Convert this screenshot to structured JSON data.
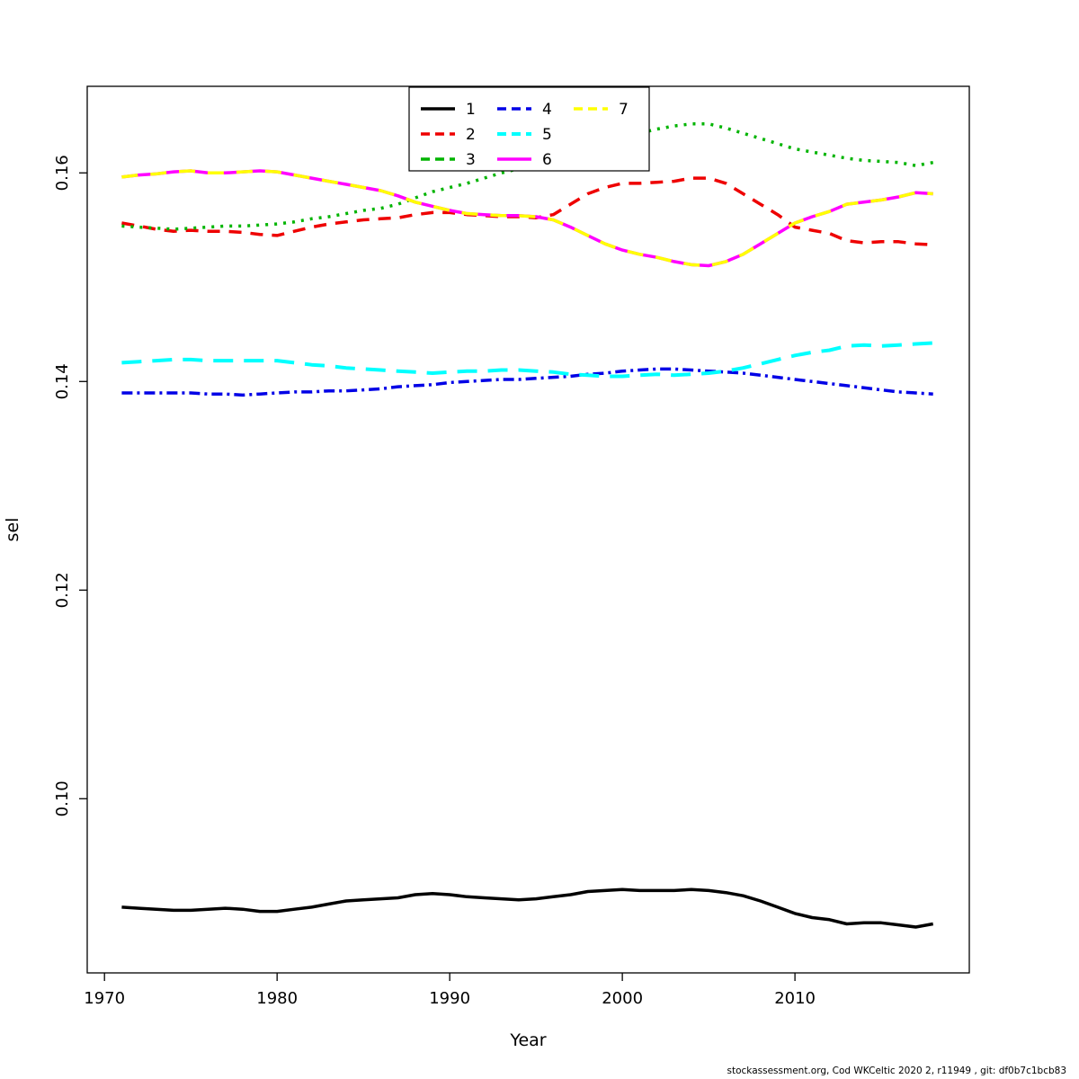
{
  "caption": "stockassessment.org, Cod WKCeltic 2020 2, r11949 , git: df0b7c1bcb83",
  "chart_data": {
    "type": "line",
    "title": "",
    "xlabel": "Year",
    "ylabel": "sel",
    "grid": false,
    "legend_position": "top-center",
    "legend_ncol": 3,
    "x_range": [
      1969.0,
      2020.1
    ],
    "y_range": [
      0.0833,
      0.1683
    ],
    "x_ticks": [
      1970,
      1980,
      1990,
      2000,
      2010
    ],
    "x_tick_labels": [
      "1970",
      "1980",
      "1990",
      "2000",
      "2010"
    ],
    "y_tick_values": [
      0.1,
      0.12,
      0.14,
      0.16
    ],
    "y_tick_labels": [
      "0.10",
      "0.12",
      "0.14",
      "0.16"
    ],
    "x": [
      1971,
      1972,
      1973,
      1974,
      1975,
      1976,
      1977,
      1978,
      1979,
      1980,
      1981,
      1982,
      1983,
      1984,
      1985,
      1986,
      1987,
      1988,
      1989,
      1990,
      1991,
      1992,
      1993,
      1994,
      1995,
      1996,
      1997,
      1998,
      1999,
      2000,
      2001,
      2002,
      2003,
      2004,
      2005,
      2006,
      2007,
      2008,
      2009,
      2010,
      2011,
      2012,
      2013,
      2014,
      2015,
      2016,
      2017,
      2018
    ],
    "series": [
      {
        "name": "1",
        "color": "#000000",
        "dash": "",
        "width": 3.5,
        "values": [
          0.0896,
          0.0895,
          0.0894,
          0.0893,
          0.0893,
          0.0894,
          0.0895,
          0.0894,
          0.0892,
          0.0892,
          0.0894,
          0.0896,
          0.0899,
          0.0902,
          0.0903,
          0.0904,
          0.0905,
          0.0908,
          0.0909,
          0.0908,
          0.0906,
          0.0905,
          0.0904,
          0.0903,
          0.0904,
          0.0906,
          0.0908,
          0.0911,
          0.0912,
          0.0913,
          0.0912,
          0.0912,
          0.0912,
          0.0913,
          0.0912,
          0.091,
          0.0907,
          0.0902,
          0.0896,
          0.089,
          0.0886,
          0.0884,
          0.088,
          0.0881,
          0.0881,
          0.0879,
          0.0877,
          0.088
        ]
      },
      {
        "name": "2",
        "color": "#ee0000",
        "dash": "14,10",
        "width": 3.5,
        "values": [
          0.1552,
          0.1549,
          0.1546,
          0.1544,
          0.1545,
          0.1544,
          0.1544,
          0.1543,
          0.1541,
          0.154,
          0.1544,
          0.1548,
          0.1551,
          0.1553,
          0.1555,
          0.1556,
          0.1557,
          0.156,
          0.1562,
          0.1562,
          0.156,
          0.1559,
          0.1558,
          0.1558,
          0.1557,
          0.156,
          0.157,
          0.158,
          0.1586,
          0.159,
          0.159,
          0.1591,
          0.1592,
          0.1595,
          0.1595,
          0.159,
          0.158,
          0.157,
          0.156,
          0.1548,
          0.1545,
          0.1542,
          0.1535,
          0.1533,
          0.1534,
          0.1534,
          0.1532,
          0.1531
        ]
      },
      {
        "name": "3",
        "color": "#00b400",
        "dash": "3,7",
        "width": 3.5,
        "values": [
          0.1549,
          0.1548,
          0.1547,
          0.1546,
          0.1547,
          0.1548,
          0.1549,
          0.1549,
          0.155,
          0.1551,
          0.1553,
          0.1556,
          0.1558,
          0.1561,
          0.1564,
          0.1566,
          0.157,
          0.1576,
          0.1582,
          0.1586,
          0.159,
          0.1595,
          0.16,
          0.1604,
          0.1608,
          0.1612,
          0.1618,
          0.1624,
          0.163,
          0.1635,
          0.1638,
          0.1642,
          0.1645,
          0.1647,
          0.1647,
          0.1643,
          0.1638,
          0.1633,
          0.1628,
          0.1623,
          0.162,
          0.1617,
          0.1614,
          0.1612,
          0.1611,
          0.161,
          0.1607,
          0.161
        ]
      },
      {
        "name": "4",
        "color": "#0000e6",
        "dash": "12,5,3,5",
        "width": 3.5,
        "values": [
          0.1389,
          0.1389,
          0.1389,
          0.1389,
          0.1389,
          0.1388,
          0.1388,
          0.1387,
          0.1388,
          0.1389,
          0.139,
          0.139,
          0.1391,
          0.1391,
          0.1392,
          0.1393,
          0.1395,
          0.1396,
          0.1397,
          0.1399,
          0.14,
          0.1401,
          0.1402,
          0.1402,
          0.1403,
          0.1404,
          0.1405,
          0.1407,
          0.1408,
          0.141,
          0.1411,
          0.1412,
          0.1412,
          0.1411,
          0.141,
          0.1409,
          0.1408,
          0.1406,
          0.1404,
          0.1402,
          0.14,
          0.1398,
          0.1396,
          0.1394,
          0.1392,
          0.139,
          0.1389,
          0.1388
        ]
      },
      {
        "name": "5",
        "color": "#00ffff",
        "dash": "22,12",
        "width": 4,
        "values": [
          0.1418,
          0.1419,
          0.142,
          0.1421,
          0.1421,
          0.142,
          0.142,
          0.142,
          0.142,
          0.142,
          0.1418,
          0.1416,
          0.1415,
          0.1413,
          0.1412,
          0.1411,
          0.141,
          0.1409,
          0.1408,
          0.1409,
          0.141,
          0.141,
          0.1411,
          0.1411,
          0.141,
          0.1409,
          0.1407,
          0.1406,
          0.1405,
          0.1405,
          0.1406,
          0.1407,
          0.1406,
          0.1407,
          0.1408,
          0.141,
          0.1413,
          0.1417,
          0.1421,
          0.1425,
          0.1428,
          0.143,
          0.1434,
          0.1435,
          0.1434,
          0.1435,
          0.1436,
          0.1437
        ]
      },
      {
        "name": "6",
        "color": "#ff00ff",
        "dash": "",
        "width": 3.5,
        "values": [
          0.1596,
          0.1598,
          0.1599,
          0.1601,
          0.1602,
          0.16,
          0.16,
          0.1601,
          0.1602,
          0.1601,
          0.1598,
          0.1595,
          0.1592,
          0.1589,
          0.1586,
          0.1583,
          0.1578,
          0.1572,
          0.1568,
          0.1564,
          0.1561,
          0.156,
          0.1559,
          0.1559,
          0.1558,
          0.1555,
          0.1548,
          0.154,
          0.1532,
          0.1526,
          0.1522,
          0.1519,
          0.1515,
          0.1512,
          0.1511,
          0.1515,
          0.1522,
          0.1532,
          0.1542,
          0.1552,
          0.1558,
          0.1563,
          0.157,
          0.1572,
          0.1574,
          0.1577,
          0.1581,
          0.158
        ]
      },
      {
        "name": "7",
        "color": "#ffff00",
        "dash": "18,14",
        "width": 3.5,
        "values": [
          0.1596,
          0.1598,
          0.1599,
          0.1601,
          0.1602,
          0.16,
          0.16,
          0.1601,
          0.1602,
          0.1601,
          0.1598,
          0.1595,
          0.1592,
          0.1589,
          0.1586,
          0.1583,
          0.1578,
          0.1572,
          0.1568,
          0.1564,
          0.1561,
          0.156,
          0.1559,
          0.1559,
          0.1558,
          0.1555,
          0.1548,
          0.154,
          0.1532,
          0.1526,
          0.1522,
          0.1519,
          0.1515,
          0.1512,
          0.1511,
          0.1515,
          0.1522,
          0.1532,
          0.1542,
          0.1552,
          0.1558,
          0.1563,
          0.157,
          0.1572,
          0.1574,
          0.1577,
          0.1581,
          0.158
        ]
      }
    ]
  }
}
